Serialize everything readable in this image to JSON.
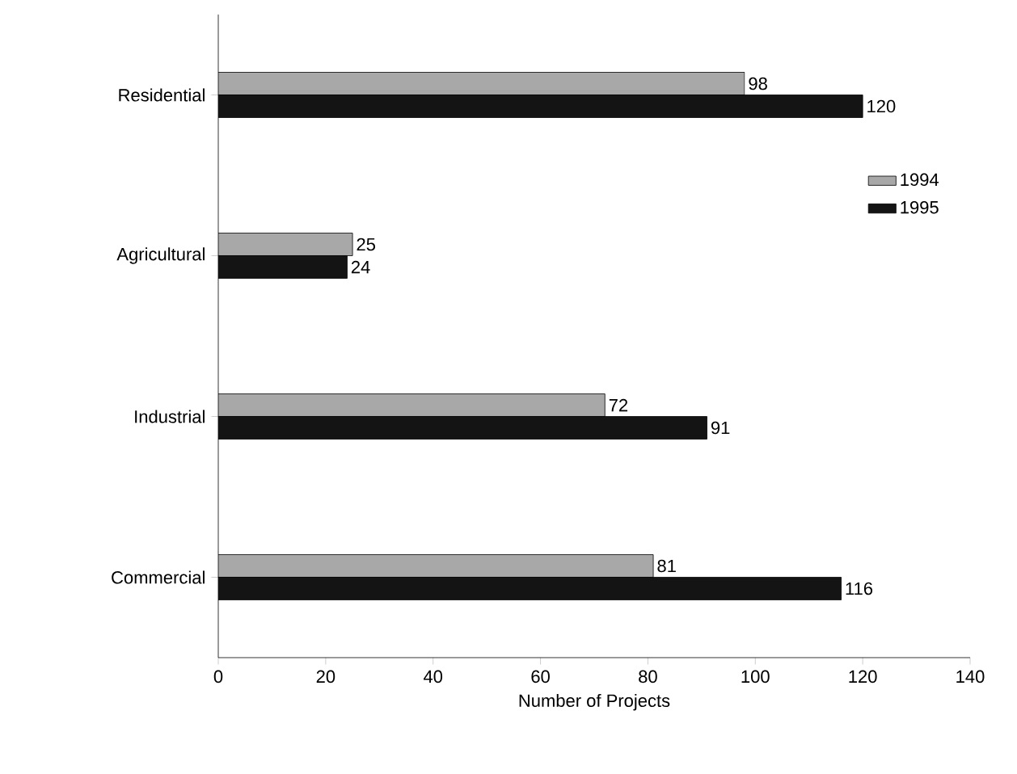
{
  "chart_data": {
    "type": "bar",
    "orientation": "horizontal",
    "xlabel": "Number of Projects",
    "categories": [
      "Residential",
      "Agricultural",
      "Industrial",
      "Commercial"
    ],
    "series": [
      {
        "name": "1994",
        "color": "#a8a8a8",
        "values": [
          98,
          25,
          72,
          81
        ]
      },
      {
        "name": "1995",
        "color": "#141414",
        "values": [
          120,
          24,
          91,
          116
        ]
      }
    ],
    "xlim": [
      0,
      140
    ],
    "xticks": [
      0,
      20,
      40,
      60,
      80,
      100,
      120,
      140
    ],
    "data_labels": true,
    "legend": "right",
    "grid": false
  }
}
